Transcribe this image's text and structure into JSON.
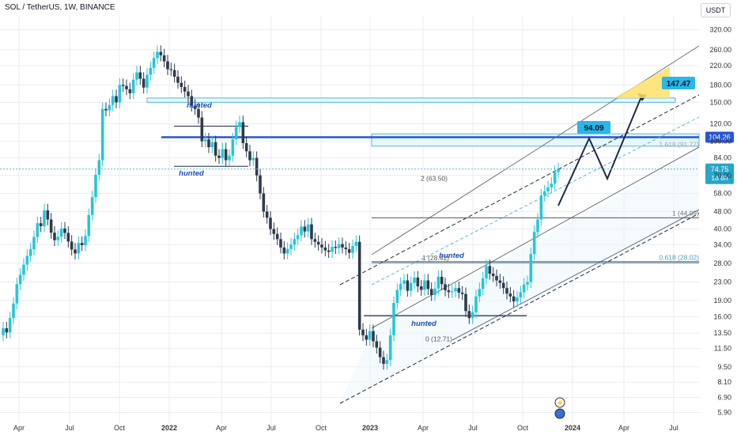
{
  "header": {
    "title": "SOL / TetherUS, 1W, BINANCE"
  },
  "currency": "USDT",
  "colors": {
    "up": "#26c6da",
    "down": "#2f3a4a",
    "grid": "#e9ecf1",
    "channel": "#6b7280",
    "midline": "#5ab4dc",
    "resistance": "#2457d6",
    "zone_fill": "#e6f7f9",
    "zone_stroke": "#5ab4dc",
    "target": "#ffe066",
    "path": "#1f2a44",
    "label_bg": "#29b6e8",
    "hunted": "#1f4fb5"
  },
  "chart_data": {
    "type": "candlestick",
    "symbol": "SOL / TetherUS",
    "timeframe": "1W",
    "exchange": "BINANCE",
    "y_scale": "log",
    "ylim": [
      5.5,
      370
    ],
    "x_ticks": [
      "Apr",
      "Jul",
      "Oct",
      "2022",
      "Apr",
      "Jul",
      "Oct",
      "2023",
      "Apr",
      "Jul",
      "Oct",
      "2024",
      "Apr",
      "Jul"
    ],
    "y_ticks": [
      "320.00",
      "260.00",
      "220.00",
      "180.00",
      "150.00",
      "120.00",
      "100.00",
      "84.00",
      "70.00",
      "58.00",
      "48.00",
      "40.00",
      "34.00",
      "28.00",
      "23.00",
      "19.00",
      "16.00",
      "13.50",
      "11.50",
      "9.50",
      "8.10",
      "6.90",
      "5.90"
    ],
    "current_price": "74.75",
    "countdown": "1d 8h",
    "resistance_label": "104.26",
    "price_closes": [
      14.2,
      13.6,
      15.8,
      18.4,
      22.5,
      24.8,
      27.6,
      30.2,
      32.4,
      36.8,
      42.5,
      41.2,
      48.6,
      44.2,
      38.5,
      35.6,
      36.9,
      40.2,
      38.4,
      35.1,
      32.3,
      31.0,
      34.6,
      33.8,
      37.2,
      46.3,
      55.8,
      70.5,
      82.0,
      140.0,
      138.0,
      146.0,
      160.0,
      150.0,
      180.0,
      178.0,
      172.0,
      165.0,
      190.0,
      205.0,
      192.0,
      175.0,
      200.0,
      215.0,
      238.0,
      254.0,
      245.0,
      230.0,
      212.0,
      210.0,
      196.0,
      184.0,
      176.0,
      168.0,
      160.0,
      145.0,
      140.0,
      128.0,
      100.0,
      102.0,
      94.0,
      99.0,
      86.0,
      84.0,
      92.0,
      82.0,
      86.0,
      102.0,
      116.0,
      122.0,
      98.0,
      90.0,
      82.0,
      84.0,
      70.0,
      58.0,
      48.0,
      45.0,
      40.0,
      38.0,
      36.0,
      33.0,
      31.0,
      32.5,
      34.0,
      36.0,
      37.5,
      41.0,
      39.0,
      42.0,
      36.0,
      35.0,
      34.0,
      33.0,
      32.0,
      31.5,
      33.2,
      32.8,
      34.2,
      33.0,
      32.4,
      31.2,
      33.5,
      35.0,
      14.0,
      13.2,
      12.6,
      13.8,
      12.4,
      11.6,
      10.5,
      9.8,
      10.2,
      13.2,
      18.5,
      21.2,
      22.6,
      23.4,
      21.0,
      22.8,
      24.1,
      22.0,
      21.2,
      23.4,
      21.4,
      20.1,
      21.5,
      24.3,
      22.5,
      21.1,
      20.7,
      20.9,
      21.6,
      20.6,
      20.3,
      17.0,
      15.8,
      16.8,
      19.8,
      21.4,
      23.9,
      27.2,
      25.1,
      24.5,
      23.4,
      22.8,
      21.6,
      20.4,
      19.8,
      18.8,
      19.6,
      20.7,
      22.4,
      23.0,
      30.8,
      38.8,
      44.2,
      56.8,
      59.3,
      61.8,
      64.2,
      72.5,
      74.75
    ],
    "annotations": {
      "hunted_labels": [
        "hunted",
        "hunted",
        "hunted",
        "hunted"
      ],
      "fib_levels": [
        {
          "label": "1.618 (91.77)",
          "value": 91.77
        },
        {
          "label": "2 (63.50)",
          "value": 63.5
        },
        {
          "label": "1 (44.99)",
          "value": 44.99
        },
        {
          "label": "1 (28.41)",
          "value": 28.41
        },
        {
          "label": "0.618 (28.02)",
          "value": 28.02
        },
        {
          "label": "0 (12.71)",
          "value": 12.71
        }
      ],
      "targets": [
        {
          "label": "94.09",
          "value": 94.09
        },
        {
          "label": "147.47",
          "value": 147.47
        }
      ]
    }
  }
}
